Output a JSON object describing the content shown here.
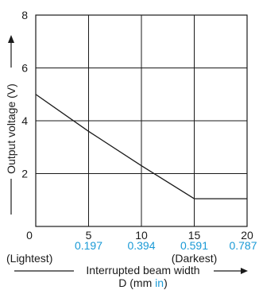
{
  "chart_data": {
    "type": "line",
    "title": "",
    "xlabel": "Interrupted beam width",
    "xlabel_line2_prefix": "D (mm ",
    "xlabel_line2_unit_in": "in",
    "xlabel_line2_suffix": ")",
    "ylabel": "Output voltage (V)",
    "xlim": [
      0,
      20
    ],
    "ylim": [
      0,
      8
    ],
    "grid": true,
    "x_ticks_mm": [
      "0",
      "5",
      "10",
      "15",
      "20"
    ],
    "x_ticks_in": [
      "0.197",
      "0.394",
      "0.591",
      "0.787"
    ],
    "y_ticks": [
      "2",
      "4",
      "6",
      "8"
    ],
    "x_annotations": {
      "lightest": "(Lightest)",
      "darkest": "(Darkest)"
    },
    "colors": {
      "line": "#1a1a1a",
      "inch_units": "#1a9ad6"
    },
    "series": [
      {
        "x": [
          0,
          5,
          10,
          15,
          20
        ],
        "y": [
          5.0,
          3.6,
          2.3,
          1.05,
          1.05
        ]
      }
    ]
  }
}
